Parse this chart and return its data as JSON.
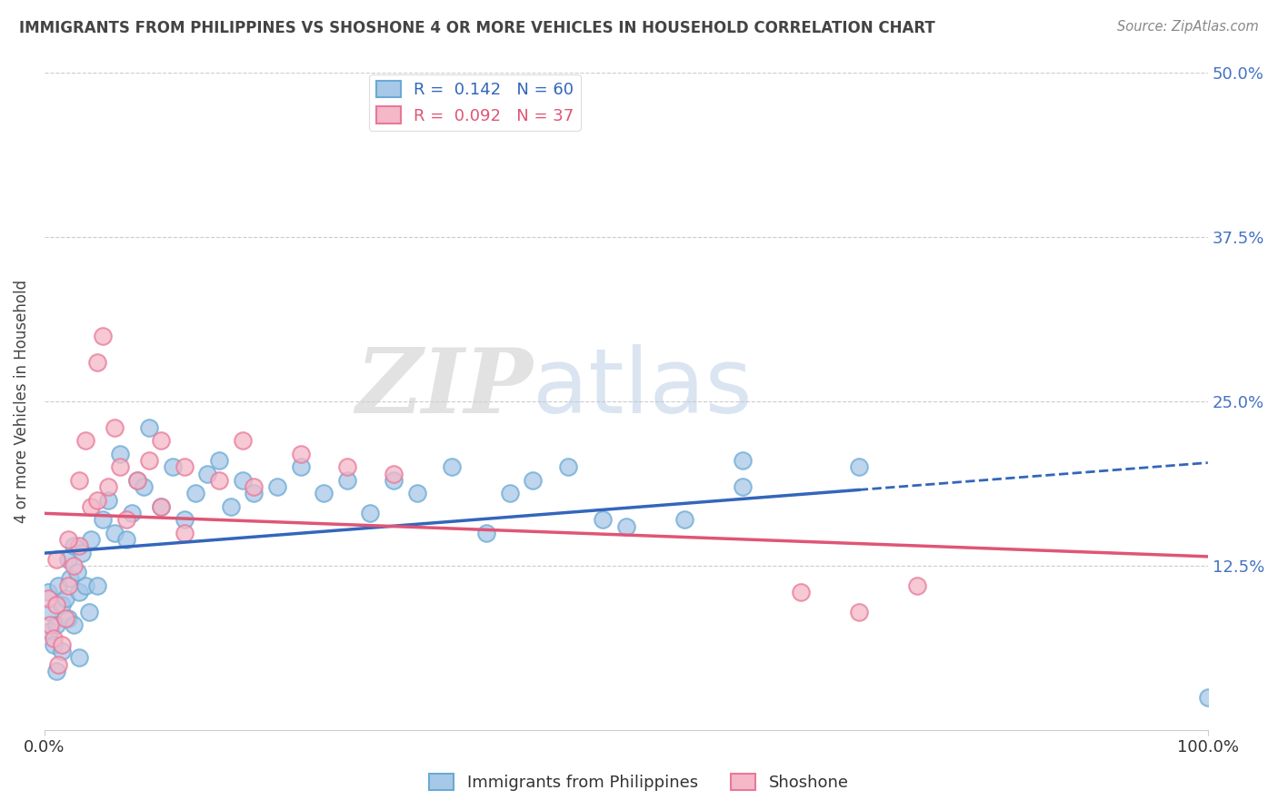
{
  "title": "IMMIGRANTS FROM PHILIPPINES VS SHOSHONE 4 OR MORE VEHICLES IN HOUSEHOLD CORRELATION CHART",
  "source": "Source: ZipAtlas.com",
  "ylabel": "4 or more Vehicles in Household",
  "legend_blue_label": "R =  0.142   N = 60",
  "legend_pink_label": "R =  0.092   N = 37",
  "blue_color": "#a8c8e8",
  "blue_edge_color": "#6aaad4",
  "pink_color": "#f4b8c8",
  "pink_edge_color": "#e87898",
  "blue_line_color": "#3366bb",
  "pink_line_color": "#e05575",
  "xlim": [
    0.0,
    100.0
  ],
  "ylim": [
    0.0,
    50.0
  ],
  "watermark_zip": "ZIP",
  "watermark_atlas": "atlas",
  "blue_scatter_x": [
    0.3,
    0.5,
    0.5,
    0.8,
    1.0,
    1.0,
    1.2,
    1.5,
    1.5,
    1.8,
    2.0,
    2.0,
    2.2,
    2.5,
    2.5,
    2.8,
    3.0,
    3.0,
    3.2,
    3.5,
    3.8,
    4.0,
    4.5,
    5.0,
    5.5,
    6.0,
    6.5,
    7.0,
    7.5,
    8.0,
    8.5,
    9.0,
    10.0,
    11.0,
    12.0,
    13.0,
    14.0,
    15.0,
    16.0,
    17.0,
    18.0,
    20.0,
    22.0,
    24.0,
    26.0,
    28.0,
    30.0,
    32.0,
    35.0,
    38.0,
    40.0,
    42.0,
    45.0,
    48.0,
    50.0,
    55.0,
    60.0,
    60.0,
    70.0,
    100.0
  ],
  "blue_scatter_y": [
    10.5,
    9.0,
    7.5,
    6.5,
    8.0,
    4.5,
    11.0,
    9.5,
    6.0,
    10.0,
    8.5,
    13.0,
    11.5,
    14.0,
    8.0,
    12.0,
    5.5,
    10.5,
    13.5,
    11.0,
    9.0,
    14.5,
    11.0,
    16.0,
    17.5,
    15.0,
    21.0,
    14.5,
    16.5,
    19.0,
    18.5,
    23.0,
    17.0,
    20.0,
    16.0,
    18.0,
    19.5,
    20.5,
    17.0,
    19.0,
    18.0,
    18.5,
    20.0,
    18.0,
    19.0,
    16.5,
    19.0,
    18.0,
    20.0,
    15.0,
    18.0,
    19.0,
    20.0,
    16.0,
    15.5,
    16.0,
    18.5,
    20.5,
    20.0,
    2.5
  ],
  "pink_scatter_x": [
    0.3,
    0.5,
    0.8,
    1.0,
    1.2,
    1.5,
    1.8,
    2.0,
    2.5,
    3.0,
    3.5,
    4.0,
    4.5,
    5.0,
    5.5,
    6.0,
    7.0,
    8.0,
    9.0,
    10.0,
    12.0,
    15.0,
    18.0,
    22.0,
    26.0,
    30.0,
    65.0,
    70.0,
    75.0,
    2.0,
    1.0,
    3.0,
    6.5,
    4.5,
    10.0,
    12.0,
    17.0
  ],
  "pink_scatter_y": [
    10.0,
    8.0,
    7.0,
    9.5,
    5.0,
    6.5,
    8.5,
    11.0,
    12.5,
    14.0,
    22.0,
    17.0,
    28.0,
    30.0,
    18.5,
    23.0,
    16.0,
    19.0,
    20.5,
    17.0,
    20.0,
    19.0,
    18.5,
    21.0,
    20.0,
    19.5,
    10.5,
    9.0,
    11.0,
    14.5,
    13.0,
    19.0,
    20.0,
    17.5,
    22.0,
    15.0,
    22.0
  ],
  "blue_solid_xmax": 70.0,
  "grid_color": "#cccccc",
  "title_color": "#444444",
  "source_color": "#888888",
  "right_tick_color": "#4472c4"
}
